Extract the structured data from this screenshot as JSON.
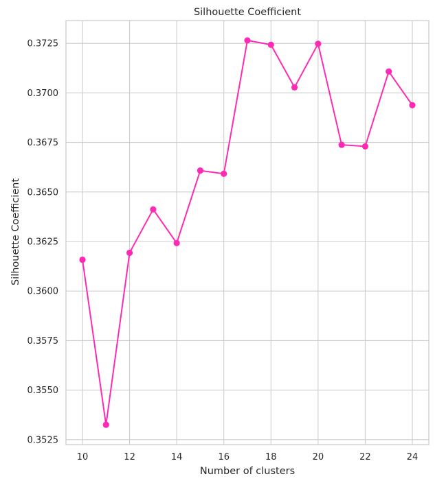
{
  "chart_data": {
    "type": "line",
    "title": "Silhouette Coefficient",
    "xlabel": "Number of clusters",
    "ylabel": "Silhouette Coefficient",
    "xlim": [
      9.3,
      24.7
    ],
    "ylim": [
      0.35225,
      0.37365
    ],
    "xticks": [
      10,
      12,
      14,
      16,
      18,
      20,
      22,
      24
    ],
    "xtick_labels": [
      "10",
      "12",
      "14",
      "16",
      "18",
      "20",
      "22",
      "24"
    ],
    "yticks": [
      0.3525,
      0.355,
      0.3575,
      0.36,
      0.3625,
      0.365,
      0.3675,
      0.37,
      0.3725
    ],
    "ytick_labels": [
      "0.3525",
      "0.3550",
      "0.3575",
      "0.3600",
      "0.3625",
      "0.3650",
      "0.3675",
      "0.3700",
      "0.3725"
    ],
    "grid": true,
    "series": [
      {
        "name": "Silhouette Coefficient",
        "color": "#ff2ab4",
        "marker": "circle",
        "x": [
          10,
          11,
          12,
          13,
          14,
          15,
          16,
          17,
          18,
          19,
          20,
          21,
          22,
          23,
          24
        ],
        "values": [
          0.36158,
          0.35325,
          0.36193,
          0.36412,
          0.36242,
          0.36608,
          0.36592,
          0.37265,
          0.37243,
          0.37028,
          0.37248,
          0.36738,
          0.3673,
          0.37108,
          0.36938
        ]
      }
    ]
  }
}
